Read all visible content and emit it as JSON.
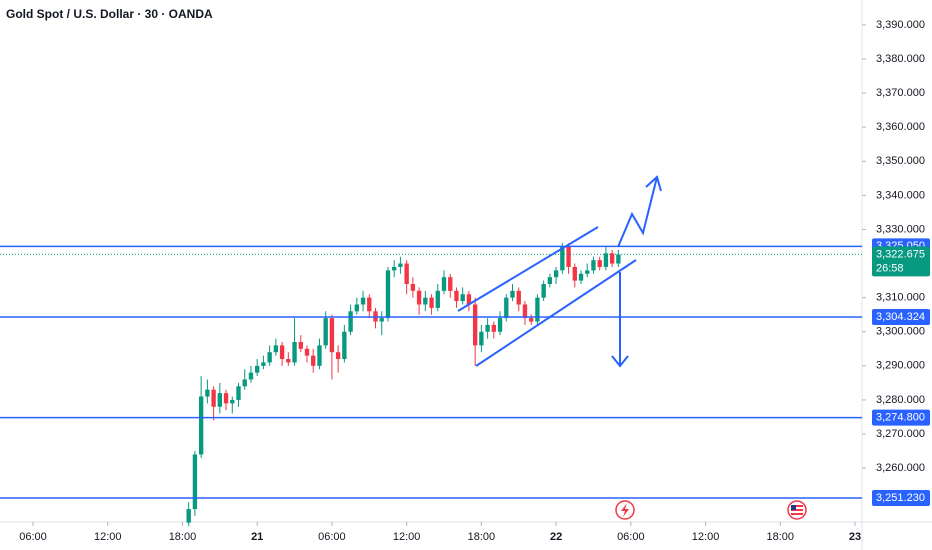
{
  "chart_data": {
    "type": "candlestick",
    "title": "Gold Spot / U.S. Dollar · 30 · OANDA",
    "up_color": "#089981",
    "down_color": "#f23645",
    "level_color": "#2962ff",
    "xlim": [
      3.35,
      72.4
    ],
    "ylim": [
      3244.2,
      3397.3
    ],
    "grid": false,
    "xticks": [
      {
        "value": 6,
        "label": "06:00"
      },
      {
        "value": 12,
        "label": "12:00"
      },
      {
        "value": 18,
        "label": "18:00"
      },
      {
        "value": 24,
        "label": "21"
      },
      {
        "value": 30,
        "label": "06:00"
      },
      {
        "value": 36,
        "label": "12:00"
      },
      {
        "value": 42,
        "label": "18:00"
      },
      {
        "value": 48,
        "label": "22"
      },
      {
        "value": 54,
        "label": "06:00"
      },
      {
        "value": 60,
        "label": "12:00"
      },
      {
        "value": 66,
        "label": "18:00"
      },
      {
        "value": 72,
        "label": "23"
      }
    ],
    "yticks": [
      {
        "value": 3260,
        "label": "3,260.000"
      },
      {
        "value": 3270,
        "label": "3,270.000"
      },
      {
        "value": 3280,
        "label": "3,280.000"
      },
      {
        "value": 3290,
        "label": "3,290.000"
      },
      {
        "value": 3300,
        "label": "3,300.000"
      },
      {
        "value": 3310,
        "label": "3,310.000"
      },
      {
        "value": 3330,
        "label": "3,330.000"
      },
      {
        "value": 3340,
        "label": "3,340.000"
      },
      {
        "value": 3350,
        "label": "3,350.000"
      },
      {
        "value": 3360,
        "label": "3,360.000"
      },
      {
        "value": 3370,
        "label": "3,370.000"
      },
      {
        "value": 3380,
        "label": "3,380.000"
      },
      {
        "value": 3390,
        "label": "3,390.000"
      }
    ],
    "levels": [
      {
        "value": 3325.05,
        "label": "3,325.050"
      },
      {
        "value": 3304.324,
        "label": "3,304.324"
      },
      {
        "value": 3274.8,
        "label": "3,274.800"
      },
      {
        "value": 3251.23,
        "label": "3,251.230"
      }
    ],
    "last_price": {
      "value": 3322.675,
      "label": "3,322.675"
    },
    "countdown": "26:58",
    "x": [
      18.5,
      19,
      19.5,
      20,
      20.5,
      21,
      21.5,
      22,
      22.5,
      23,
      23.5,
      24,
      24.5,
      25,
      25.5,
      26,
      26.5,
      27,
      27.5,
      28,
      28.5,
      29,
      29.5,
      30,
      30.5,
      31,
      31.5,
      32,
      32.5,
      33,
      33.5,
      34,
      34.5,
      35,
      35.5,
      36,
      36.5,
      37,
      37.5,
      38,
      38.5,
      39,
      39.5,
      40,
      40.5,
      41,
      41.5,
      42,
      42.5,
      43,
      43.5,
      44,
      44.5,
      45,
      45.5,
      46,
      46.5,
      47,
      47.5,
      48,
      48.5,
      49,
      49.5,
      50,
      50.5,
      51,
      51.5,
      52,
      52.5,
      53
    ],
    "ohlc": [
      [
        3244,
        3250,
        3243,
        3248
      ],
      [
        3248,
        3265,
        3246,
        3264
      ],
      [
        3264,
        3287,
        3263,
        3281
      ],
      [
        3281,
        3286,
        3279,
        3283
      ],
      [
        3283,
        3284,
        3274,
        3278
      ],
      [
        3278,
        3285,
        3276,
        3282
      ],
      [
        3282,
        3283,
        3277,
        3279
      ],
      [
        3279,
        3281,
        3276,
        3280
      ],
      [
        3280,
        3285,
        3278,
        3284
      ],
      [
        3284,
        3289,
        3283,
        3286
      ],
      [
        3286,
        3290,
        3285,
        3288
      ],
      [
        3288,
        3292,
        3287,
        3290
      ],
      [
        3290,
        3293,
        3289,
        3291
      ],
      [
        3291,
        3296,
        3290,
        3294
      ],
      [
        3294,
        3298,
        3293,
        3296
      ],
      [
        3296,
        3297,
        3290,
        3292
      ],
      [
        3292,
        3294,
        3290,
        3291
      ],
      [
        3291,
        3304,
        3290,
        3297
      ],
      [
        3297,
        3299,
        3294,
        3295
      ],
      [
        3295,
        3296,
        3291,
        3293
      ],
      [
        3293,
        3295,
        3288,
        3290
      ],
      [
        3290,
        3298,
        3289,
        3296
      ],
      [
        3296,
        3306,
        3295,
        3304
      ],
      [
        3304,
        3305,
        3286,
        3294
      ],
      [
        3294,
        3296,
        3288,
        3292
      ],
      [
        3292,
        3302,
        3291,
        3300
      ],
      [
        3300,
        3308,
        3299,
        3306
      ],
      [
        3306,
        3310,
        3305,
        3308
      ],
      [
        3308,
        3312,
        3306,
        3310
      ],
      [
        3310,
        3311,
        3304,
        3306
      ],
      [
        3306,
        3307,
        3301,
        3303
      ],
      [
        3303,
        3306,
        3299,
        3304
      ],
      [
        3304,
        3319,
        3303,
        3318
      ],
      [
        3318,
        3321,
        3316,
        3319
      ],
      [
        3319,
        3322,
        3317,
        3320
      ],
      [
        3320,
        3321,
        3311,
        3314
      ],
      [
        3314,
        3316,
        3310,
        3312
      ],
      [
        3312,
        3313,
        3305,
        3308
      ],
      [
        3308,
        3312,
        3306,
        3310
      ],
      [
        3310,
        3311,
        3305,
        3307
      ],
      [
        3307,
        3314,
        3306,
        3312
      ],
      [
        3312,
        3318,
        3311,
        3316
      ],
      [
        3316,
        3317,
        3310,
        3312
      ],
      [
        3312,
        3313,
        3307,
        3309
      ],
      [
        3309,
        3313,
        3308,
        3311
      ],
      [
        3311,
        3312,
        3306,
        3308
      ],
      [
        3308,
        3310,
        3290,
        3296
      ],
      [
        3296,
        3302,
        3294,
        3300
      ],
      [
        3300,
        3304,
        3298,
        3302
      ],
      [
        3302,
        3303,
        3298,
        3300
      ],
      [
        3300,
        3306,
        3299,
        3304
      ],
      [
        3304,
        3311,
        3303,
        3310
      ],
      [
        3310,
        3314,
        3309,
        3312
      ],
      [
        3312,
        3313,
        3306,
        3308
      ],
      [
        3308,
        3309,
        3302,
        3304
      ],
      [
        3304,
        3305,
        3302,
        3303
      ],
      [
        3303,
        3311,
        3302,
        3310
      ],
      [
        3310,
        3315,
        3309,
        3314
      ],
      [
        3314,
        3317,
        3313,
        3316
      ],
      [
        3316,
        3319,
        3314,
        3318
      ],
      [
        3318,
        3326,
        3317,
        3325
      ],
      [
        3325,
        3326,
        3317,
        3319
      ],
      [
        3319,
        3320,
        3313,
        3315
      ],
      [
        3315,
        3318,
        3314,
        3317
      ],
      [
        3317,
        3320,
        3316,
        3318
      ],
      [
        3318,
        3322,
        3317,
        3321
      ],
      [
        3321,
        3322,
        3318,
        3319
      ],
      [
        3319,
        3325,
        3318,
        3323
      ],
      [
        3323,
        3324,
        3319,
        3320
      ],
      [
        3320,
        3324,
        3319,
        3322.675
      ]
    ]
  }
}
